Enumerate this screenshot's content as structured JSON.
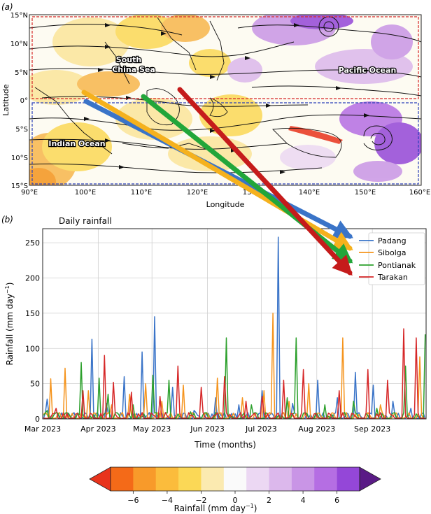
{
  "panel_a": {
    "label": "(a)",
    "xlabel": "Longitude",
    "ylabel": "Latitude",
    "x_ticks": [
      "90°E",
      "100°E",
      "110°E",
      "120°E",
      "130°E",
      "140°E",
      "150°E",
      "160°E"
    ],
    "y_ticks": [
      "15°N",
      "10°N",
      "5°N",
      "0°",
      "5°S",
      "10°S",
      "15°S"
    ],
    "regions": [
      "South China Sea",
      "Pacific Ocean",
      "Indian Ocean"
    ]
  },
  "panel_b": {
    "label": "(b)",
    "title": "Daily rainfall",
    "xlabel": "Time (months)",
    "ylabel": "Rainfall (mm day",
    "ylabel_sup": "−1",
    "ylabel_close": ")",
    "x_ticks": [
      "Mar 2023",
      "Apr 2023",
      "May 2023",
      "Jun 2023",
      "Jul 2023",
      "Aug 2023",
      "Sep 2023"
    ],
    "y_ticks": [
      "0",
      "50",
      "100",
      "150",
      "200",
      "250"
    ]
  },
  "colorbar": {
    "label": "Rainfall (mm day",
    "label_sup": "−1",
    "label_close": ")",
    "ticks": [
      "−6",
      "−4",
      "−2",
      "0",
      "2",
      "4",
      "6"
    ],
    "colors": [
      "#e8331c",
      "#f46a18",
      "#f89a2a",
      "#fbbc3c",
      "#fbd856",
      "#fbeab0",
      "#fafafa",
      "#ecd8f3",
      "#dcb8ec",
      "#c995e6",
      "#b56ee3",
      "#9447d8",
      "#5a1b86"
    ]
  },
  "colors": {
    "Padang": "#3a74c8",
    "Sibolga": "#f5941d",
    "Pontianak": "#2ca02c",
    "Tarakan": "#d62728"
  },
  "chart_data": [
    {
      "type": "map",
      "title": "",
      "xlabel": "Longitude",
      "ylabel": "Latitude",
      "xlim": [
        90,
        160
      ],
      "ylim": [
        -15,
        15
      ]
    },
    {
      "type": "line",
      "title": "Daily rainfall",
      "xlabel": "Time (months)",
      "ylabel": "Rainfall (mm day−1)",
      "x_range": [
        "2023-03-01",
        "2023-09-30"
      ],
      "ylim": [
        0,
        270
      ],
      "series": [
        {
          "name": "Padang",
          "points": [
            [
              "2023-03-03",
              28
            ],
            [
              "2023-03-15",
              8
            ],
            [
              "2023-03-28",
              113
            ],
            [
              "2023-04-05",
              22
            ],
            [
              "2023-04-15",
              60
            ],
            [
              "2023-04-25",
              95
            ],
            [
              "2023-05-02",
              145
            ],
            [
              "2023-05-12",
              45
            ],
            [
              "2023-05-24",
              12
            ],
            [
              "2023-06-05",
              30
            ],
            [
              "2023-06-18",
              20
            ],
            [
              "2023-07-01",
              40
            ],
            [
              "2023-07-10",
              258
            ],
            [
              "2023-07-18",
              22
            ],
            [
              "2023-08-01",
              55
            ],
            [
              "2023-08-12",
              30
            ],
            [
              "2023-08-22",
              66
            ],
            [
              "2023-09-01",
              48
            ],
            [
              "2023-09-12",
              25
            ],
            [
              "2023-09-22",
              15
            ]
          ]
        },
        {
          "name": "Sibolga",
          "points": [
            [
              "2023-03-05",
              57
            ],
            [
              "2023-03-13",
              72
            ],
            [
              "2023-03-26",
              40
            ],
            [
              "2023-04-08",
              20
            ],
            [
              "2023-04-18",
              35
            ],
            [
              "2023-04-27",
              50
            ],
            [
              "2023-05-06",
              25
            ],
            [
              "2023-05-18",
              48
            ],
            [
              "2023-06-06",
              58
            ],
            [
              "2023-06-20",
              30
            ],
            [
              "2023-07-02",
              40
            ],
            [
              "2023-07-07",
              150
            ],
            [
              "2023-07-16",
              25
            ],
            [
              "2023-07-27",
              50
            ],
            [
              "2023-08-15",
              115
            ],
            [
              "2023-09-05",
              20
            ],
            [
              "2023-09-27",
              88
            ]
          ]
        },
        {
          "name": "Pontianak",
          "points": [
            [
              "2023-03-03",
              12
            ],
            [
              "2023-03-22",
              80
            ],
            [
              "2023-04-01",
              58
            ],
            [
              "2023-04-06",
              35
            ],
            [
              "2023-04-20",
              20
            ],
            [
              "2023-05-01",
              62
            ],
            [
              "2023-05-10",
              55
            ],
            [
              "2023-05-22",
              10
            ],
            [
              "2023-06-11",
              115
            ],
            [
              "2023-06-25",
              20
            ],
            [
              "2023-07-15",
              30
            ],
            [
              "2023-07-20",
              115
            ],
            [
              "2023-08-05",
              20
            ],
            [
              "2023-08-21",
              25
            ],
            [
              "2023-09-03",
              15
            ],
            [
              "2023-09-19",
              75
            ],
            [
              "2023-09-30",
              120
            ]
          ]
        },
        {
          "name": "Tarakan",
          "points": [
            [
              "2023-03-08",
              15
            ],
            [
              "2023-03-23",
              40
            ],
            [
              "2023-04-04",
              90
            ],
            [
              "2023-04-09",
              52
            ],
            [
              "2023-04-19",
              38
            ],
            [
              "2023-05-05",
              32
            ],
            [
              "2023-05-15",
              75
            ],
            [
              "2023-05-28",
              45
            ],
            [
              "2023-06-10",
              60
            ],
            [
              "2023-06-22",
              25
            ],
            [
              "2023-07-01",
              32
            ],
            [
              "2023-07-13",
              55
            ],
            [
              "2023-07-24",
              70
            ],
            [
              "2023-08-13",
              40
            ],
            [
              "2023-08-29",
              70
            ],
            [
              "2023-09-09",
              55
            ],
            [
              "2023-09-18",
              128
            ],
            [
              "2023-09-25",
              115
            ]
          ]
        }
      ]
    }
  ]
}
